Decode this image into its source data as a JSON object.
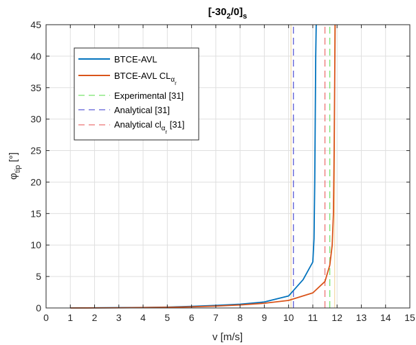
{
  "chart_data": {
    "type": "line",
    "title": "[-30",
    "title_sub": "2",
    "title_mid": "/0]",
    "title_sub2": "s",
    "xlabel": "v [m/s]",
    "ylabel_main": "φ",
    "ylabel_sub": "tip",
    "ylabel_unit": " [°]",
    "xlim": [
      0,
      15
    ],
    "ylim": [
      0,
      45
    ],
    "xticks": [
      0,
      1,
      2,
      3,
      4,
      5,
      6,
      7,
      8,
      9,
      10,
      11,
      12,
      13,
      14,
      15
    ],
    "yticks": [
      0,
      5,
      10,
      15,
      20,
      25,
      30,
      35,
      40,
      45
    ],
    "grid": true,
    "legend_position": "upper-left",
    "series": [
      {
        "name": "BTCE-AVL",
        "style": "solid",
        "color": "#0072BD",
        "x": [
          1,
          2,
          3,
          4,
          5,
          6,
          7,
          8,
          9,
          10,
          10.6,
          11.0,
          11.05,
          11.08,
          11.1,
          11.12,
          11.14
        ],
        "y": [
          0,
          0.02,
          0.05,
          0.08,
          0.14,
          0.25,
          0.4,
          0.6,
          0.95,
          1.9,
          4.5,
          7.3,
          11,
          20,
          30,
          40,
          45
        ]
      },
      {
        "name": "BTCE-AVL CL",
        "name_sub": "α",
        "name_subsub": "r",
        "style": "solid",
        "color": "#D95319",
        "x": [
          1,
          2,
          3,
          4,
          5,
          6,
          7,
          8,
          9,
          10,
          11.0,
          11.5,
          11.7,
          11.8,
          11.85,
          11.88,
          11.9,
          11.92
        ],
        "y": [
          0,
          0.01,
          0.03,
          0.06,
          0.1,
          0.18,
          0.3,
          0.48,
          0.75,
          1.2,
          2.4,
          4.2,
          6.8,
          10,
          15,
          25,
          35,
          45
        ]
      },
      {
        "name": "Experimental [31]",
        "style": "dashed",
        "color": "#77E36B",
        "x": [
          11.7,
          11.7
        ],
        "y": [
          0,
          45
        ]
      },
      {
        "name": "Analytical [31]",
        "style": "dashed",
        "color": "#5A5AD6",
        "x": [
          10.2,
          10.2
        ],
        "y": [
          0,
          45
        ]
      },
      {
        "name": "Analytical cl",
        "name_sub": "α",
        "name_subsub": "r",
        "name_suffix": " [31]",
        "style": "dashed",
        "color": "#EC7272",
        "x": [
          11.5,
          11.5
        ],
        "y": [
          0,
          45
        ]
      }
    ],
    "vertical_bands": [
      {
        "x": 10.1,
        "color": "#F2D9A6"
      },
      {
        "x": 11.9,
        "color": "#F2D9A6"
      }
    ]
  }
}
